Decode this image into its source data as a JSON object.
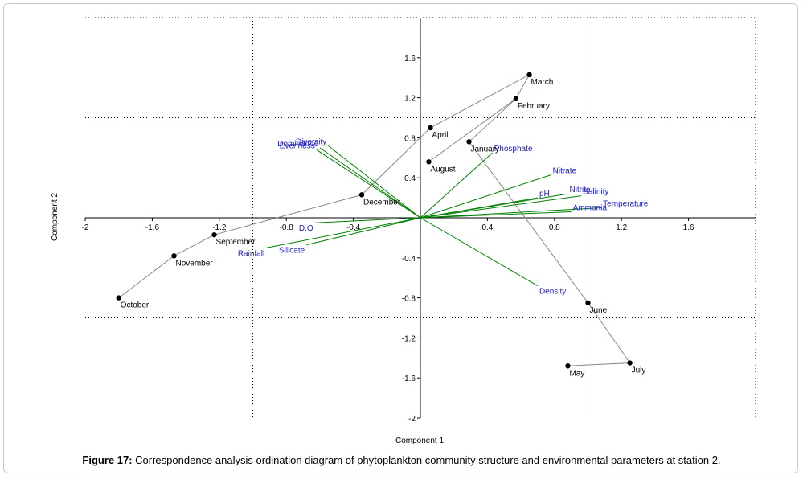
{
  "chart_data": {
    "type": "scatter",
    "xlabel": "Component 1",
    "ylabel": "Component 2",
    "xlim": [
      -2,
      2
    ],
    "ylim": [
      -2,
      2
    ],
    "xticks": [
      "-2",
      "-1.6",
      "-1.2",
      "-0.8",
      "-0.4",
      "0.4",
      "0.8",
      "1.2",
      "1.6"
    ],
    "yticks": [
      "1.6",
      "1.2",
      "0.8",
      "0.4",
      "-0.4",
      "-0.8",
      "-1.2",
      "-1.6",
      "-2"
    ],
    "grid": "dotted at ±1",
    "sites": [
      {
        "label": "March",
        "x": 0.65,
        "y": 1.43
      },
      {
        "label": "February",
        "x": 0.57,
        "y": 1.19
      },
      {
        "label": "April",
        "x": 0.06,
        "y": 0.9
      },
      {
        "label": "January",
        "x": 0.29,
        "y": 0.76
      },
      {
        "label": "August",
        "x": 0.05,
        "y": 0.56
      },
      {
        "label": "December",
        "x": -0.35,
        "y": 0.23
      },
      {
        "label": "September",
        "x": -1.23,
        "y": -0.17
      },
      {
        "label": "November",
        "x": -1.47,
        "y": -0.38
      },
      {
        "label": "October",
        "x": -1.8,
        "y": -0.8
      },
      {
        "label": "June",
        "x": 1.0,
        "y": -0.85
      },
      {
        "label": "July",
        "x": 1.25,
        "y": -1.45
      },
      {
        "label": "May",
        "x": 0.88,
        "y": -1.48
      }
    ],
    "site_path": [
      "October",
      "November",
      "September",
      "December",
      "April",
      "March",
      "February",
      "January",
      "June",
      "July",
      "May"
    ],
    "site_path_2": [
      "August",
      "February"
    ],
    "variables": [
      {
        "label": "Diversity",
        "x": -0.55,
        "y": 0.72
      },
      {
        "label": "Dominance",
        "x": -0.6,
        "y": 0.7
      },
      {
        "label": "Evenness",
        "x": -0.62,
        "y": 0.68
      },
      {
        "label": "Phosphate",
        "x": 0.43,
        "y": 0.65
      },
      {
        "label": "Nitrate",
        "x": 0.78,
        "y": 0.43
      },
      {
        "label": "pH",
        "x": 0.7,
        "y": 0.2
      },
      {
        "label": "Nitrite",
        "x": 0.88,
        "y": 0.24
      },
      {
        "label": "Salinity",
        "x": 0.96,
        "y": 0.22
      },
      {
        "label": "Temperature",
        "x": 1.08,
        "y": 0.1
      },
      {
        "label": "Ammonia",
        "x": 0.9,
        "y": 0.06
      },
      {
        "label": "D.O",
        "x": -0.63,
        "y": -0.05
      },
      {
        "label": "Silicate",
        "x": -0.68,
        "y": -0.27
      },
      {
        "label": "Rainfall",
        "x": -0.92,
        "y": -0.3
      },
      {
        "label": "Density",
        "x": 0.7,
        "y": -0.68
      }
    ]
  },
  "caption": {
    "bold": "Figure 17:",
    "text": " Correspondence analysis ordination diagram of phytoplankton community structure and environmental parameters at station 2."
  },
  "colors": {
    "sites": "#000000",
    "path": "#888888",
    "vectors": "#008000",
    "variable_labels": "#2020d0"
  }
}
